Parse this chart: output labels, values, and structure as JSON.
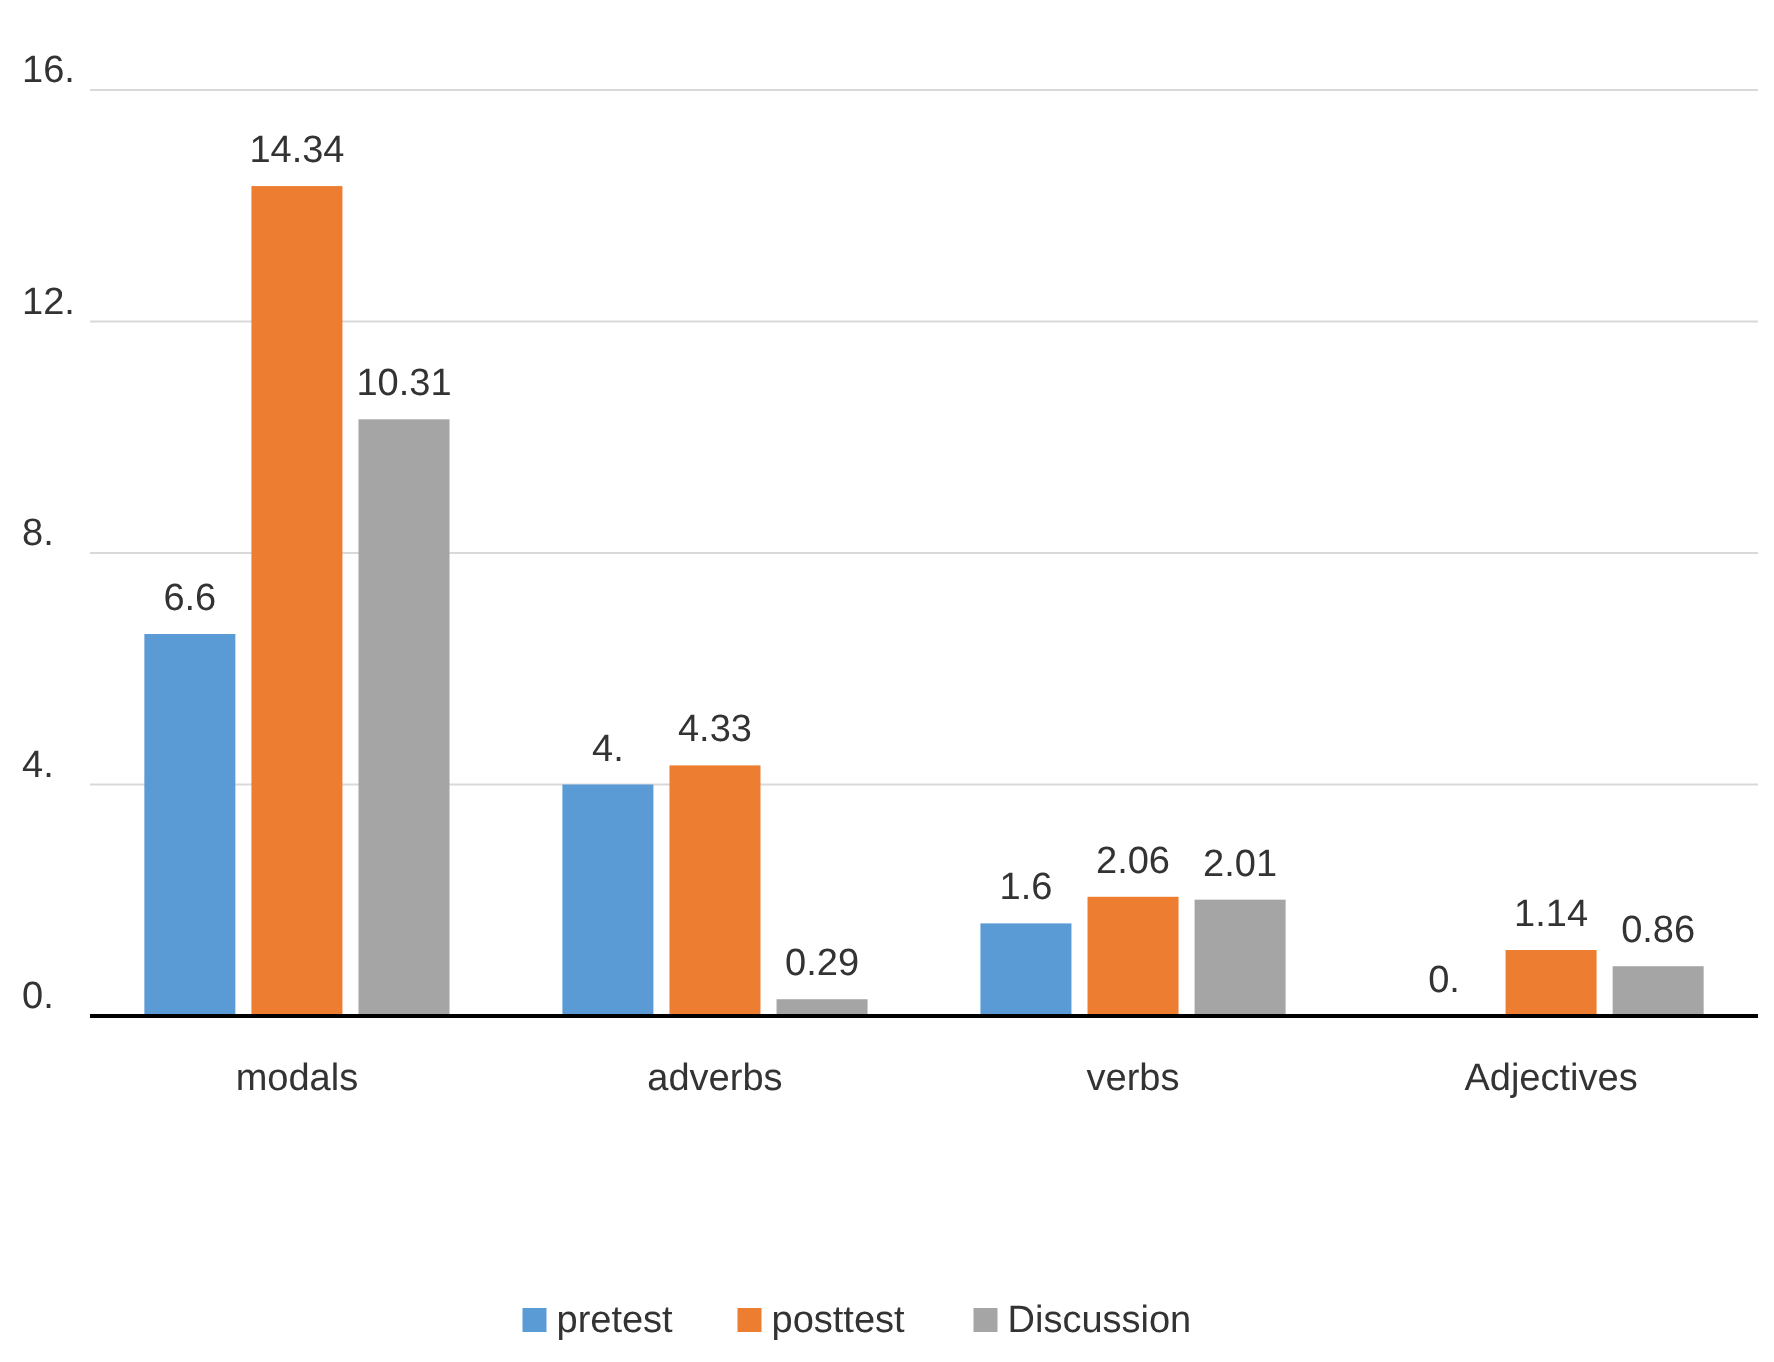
{
  "chart_data": {
    "type": "bar",
    "categories": [
      "modals",
      "adverbs",
      "verbs",
      "Adjectives"
    ],
    "series": [
      {
        "name": "pretest",
        "color": "#5b9bd5",
        "values": [
          6.6,
          4,
          1.6,
          0
        ],
        "value_labels": [
          "6.6",
          "4.",
          "1.6",
          "0."
        ]
      },
      {
        "name": "posttest",
        "color": "#ed7d31",
        "values": [
          14.34,
          4.33,
          2.06,
          1.14
        ],
        "value_labels": [
          "14.34",
          "4.33",
          "2.06",
          "1.14"
        ]
      },
      {
        "name": "Discussion",
        "color": "#a5a5a5",
        "values": [
          10.31,
          0.29,
          2.01,
          0.86
        ],
        "value_labels": [
          "10.31",
          "0.29",
          "2.01",
          "0.86"
        ]
      }
    ],
    "ylim": [
      0,
      16
    ],
    "yticks": [
      {
        "value": 0,
        "label": "0."
      },
      {
        "value": 4,
        "label": "4."
      },
      {
        "value": 8,
        "label": "8."
      },
      {
        "value": 12,
        "label": "12."
      },
      {
        "value": 16,
        "label": "16."
      }
    ],
    "grid": "y",
    "legend": "bottom"
  }
}
